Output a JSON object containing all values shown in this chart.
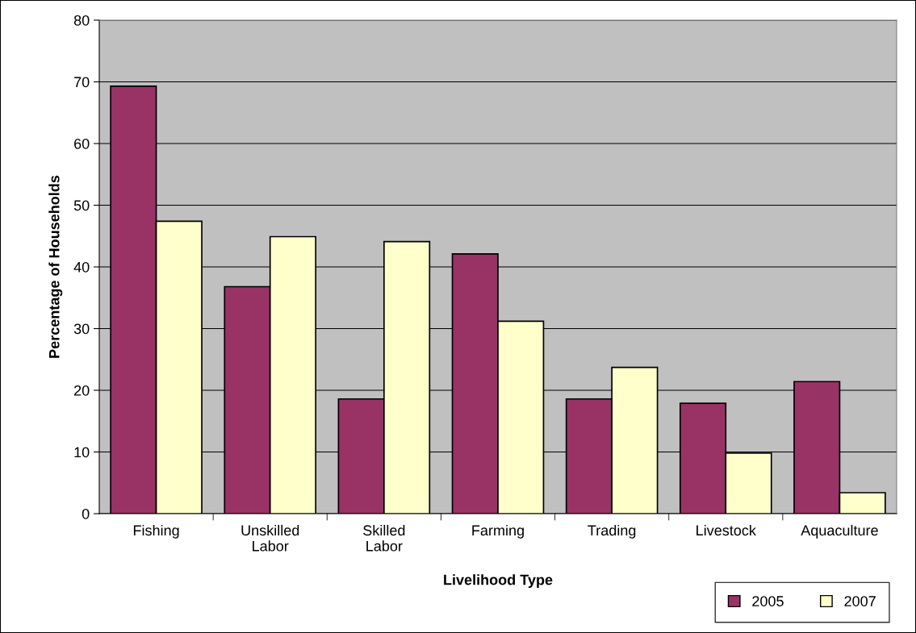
{
  "chart_data": {
    "type": "bar",
    "xlabel": "Livelihood Type",
    "ylabel": "Percentage of Households",
    "categories": [
      "Fishing",
      "Unskilled\nLabor",
      "Skilled\nLabor",
      "Farming",
      "Trading",
      "Livestock",
      "Aquaculture"
    ],
    "series": [
      {
        "name": "2005",
        "color": "#993366",
        "values": [
          69.3,
          36.8,
          18.6,
          42.1,
          18.6,
          17.9,
          21.4
        ]
      },
      {
        "name": "2007",
        "color": "#ffffcc",
        "values": [
          47.4,
          44.9,
          44.1,
          31.2,
          23.7,
          9.8,
          3.4
        ]
      }
    ],
    "ylim": [
      0,
      80
    ],
    "yticks": [
      0,
      10,
      20,
      30,
      40,
      50,
      60,
      70,
      80
    ],
    "grid": "y",
    "legend": "bottom right"
  }
}
